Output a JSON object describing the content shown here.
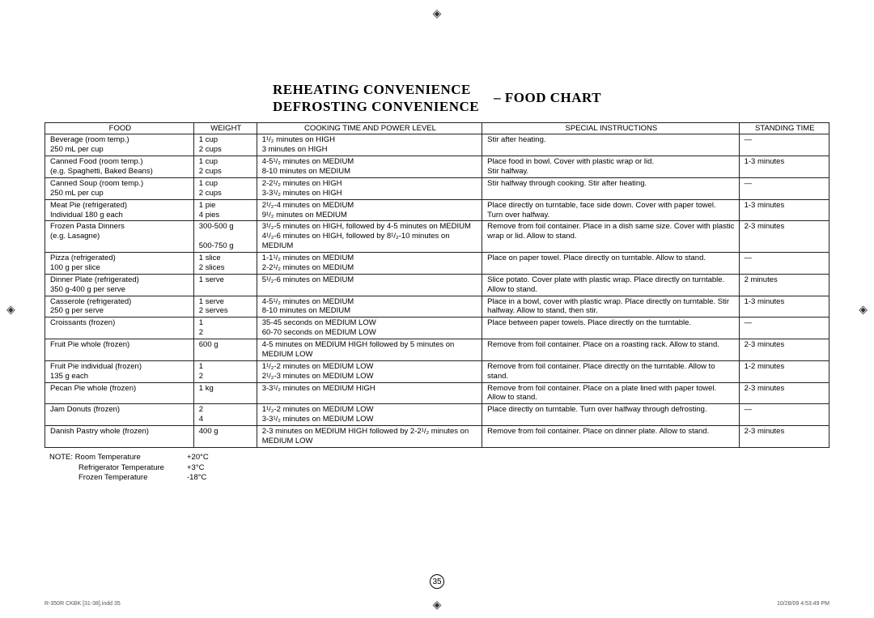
{
  "title": {
    "left1": "REHEATING CONVENIENCE",
    "left2": "DEFROSTING CONVENIENCE",
    "right": "– FOOD CHART"
  },
  "columns": [
    "FOOD",
    "WEIGHT",
    "COOKING TIME AND POWER LEVEL",
    "SPECIAL INSTRUCTIONS",
    "STANDING TIME"
  ],
  "rows": [
    {
      "food": "Beverage (room temp.)\n250 mL per cup",
      "weight": "1 cup\n2 cups",
      "cook": "1¹/₂ minutes on HIGH\n3 minutes on HIGH",
      "special": "Stir after heating.",
      "stand": "—"
    },
    {
      "food": "Canned Food (room temp.)\n(e.g. Spaghetti, Baked Beans)",
      "weight": "1 cup\n2 cups",
      "cook": "4-5¹/₂ minutes on MEDIUM\n8-10 minutes on MEDIUM",
      "special": "Place food in bowl. Cover with plastic wrap or lid.\nStir halfway.",
      "stand": "1-3 minutes"
    },
    {
      "food": "Canned Soup (room temp.)\n250 mL per cup",
      "weight": "1 cup\n2 cups",
      "cook": "2-2¹/₂ minutes on HIGH\n3-3¹/₂ minutes on HIGH",
      "special": "Stir halfway through cooking. Stir after heating.",
      "stand": "—"
    },
    {
      "food": "Meat Pie (refrigerated)\nIndividual 180 g each",
      "weight": "1 pie\n4 pies",
      "cook": "2¹/₂-4 minutes on MEDIUM\n9¹/₂ minutes on MEDIUM",
      "special": "Place directly on turntable, face side down. Cover with paper towel.\nTurn over halfway.",
      "stand": "1-3 minutes"
    },
    {
      "food": "Frozen Pasta Dinners\n(e.g. Lasagne)",
      "weight": "300-500 g\n\n500-750 g",
      "cook": "3¹/₂-5 minutes on HIGH, followed by 4-5 minutes on MEDIUM\n4¹/₂-6 minutes on HIGH, followed by 8¹/₂-10 minutes on MEDIUM",
      "special": "Remove from foil container. Place in a dish same size. Cover with plastic wrap or lid. Allow to stand.",
      "stand": "2-3 minutes"
    },
    {
      "food": "Pizza (refrigerated)\n100 g per slice",
      "weight": "1 slice\n2 slices",
      "cook": "1-1¹/₂ minutes on MEDIUM\n2-2¹/₂ minutes on MEDIUM",
      "special": "Place on paper towel. Place directly on turntable. Allow to stand.",
      "stand": "—"
    },
    {
      "food": "Dinner Plate (refrigerated)\n350 g-400 g per serve",
      "weight": "1 serve",
      "cook": "5¹/₂-6 minutes on MEDIUM",
      "special": "Slice potato. Cover plate with plastic wrap. Place directly on turntable. Allow to stand.",
      "stand": "2 minutes"
    },
    {
      "food": "Casserole (refrigerated)\n250 g per serve",
      "weight": "1 serve\n2 serves",
      "cook": "4-5¹/₂ minutes on MEDIUM\n8-10 minutes on MEDIUM",
      "special": "Place in a bowl, cover with plastic wrap. Place directly on turntable. Stir halfway. Allow to stand, then stir.",
      "stand": "1-3 minutes"
    },
    {
      "food": "Croissants (frozen)",
      "weight": "1\n2",
      "cook": "35-45 seconds on MEDIUM LOW\n60-70 seconds on MEDIUM LOW",
      "special": "Place between paper towels. Place directly on the turntable.",
      "stand": "—"
    },
    {
      "food": "Fruit Pie whole (frozen)",
      "weight": "600 g",
      "cook": "4-5 minutes on MEDIUM HIGH followed by 5 minutes on MEDIUM LOW",
      "special": "Remove from foil container. Place on a roasting rack. Allow to stand.",
      "stand": "2-3 minutes"
    },
    {
      "food": "Fruit Pie individual (frozen)\n135 g each",
      "weight": "1\n2",
      "cook": "1¹/₂-2 minutes on MEDIUM LOW\n2¹/₂-3 minutes on MEDIUM LOW",
      "special": "Remove from foil container. Place directly on the turntable. Allow to stand.",
      "stand": "1-2 minutes"
    },
    {
      "food": "Pecan Pie whole (frozen)",
      "weight": "1 kg",
      "cook": "3-3¹/₂ minutes on MEDIUM HIGH",
      "special": "Remove from foil container. Place on a plate lined with paper towel. Allow to stand.",
      "stand": "2-3 minutes"
    },
    {
      "food": "Jam Donuts (frozen)",
      "weight": "2\n4",
      "cook": "1¹/₂-2 minutes on MEDIUM LOW\n3-3¹/₂ minutes on MEDIUM LOW",
      "special": "Place directly on turntable. Turn over halfway through defrosting.",
      "stand": "—"
    },
    {
      "food": "Danish Pastry whole (frozen)",
      "weight": "400 g",
      "cook": "2-3 minutes on MEDIUM HIGH followed by 2-2¹/₂ minutes on MEDIUM LOW",
      "special": "Remove from foil container. Place on dinner plate. Allow to stand.",
      "stand": "2-3 minutes"
    }
  ],
  "notes": {
    "prefix": "NOTE:",
    "items": [
      {
        "label": "Room Temperature",
        "val": "+20°C"
      },
      {
        "label": "Refrigerator Temperature",
        "val": "+3°C"
      },
      {
        "label": "Frozen Temperature",
        "val": "-18°C"
      }
    ]
  },
  "page_number": "35",
  "footer_left": "R-350R CKBK [31-38].indd   35",
  "footer_right": "10/28/09   4:53:49 PM",
  "crop_glyph": "◈"
}
